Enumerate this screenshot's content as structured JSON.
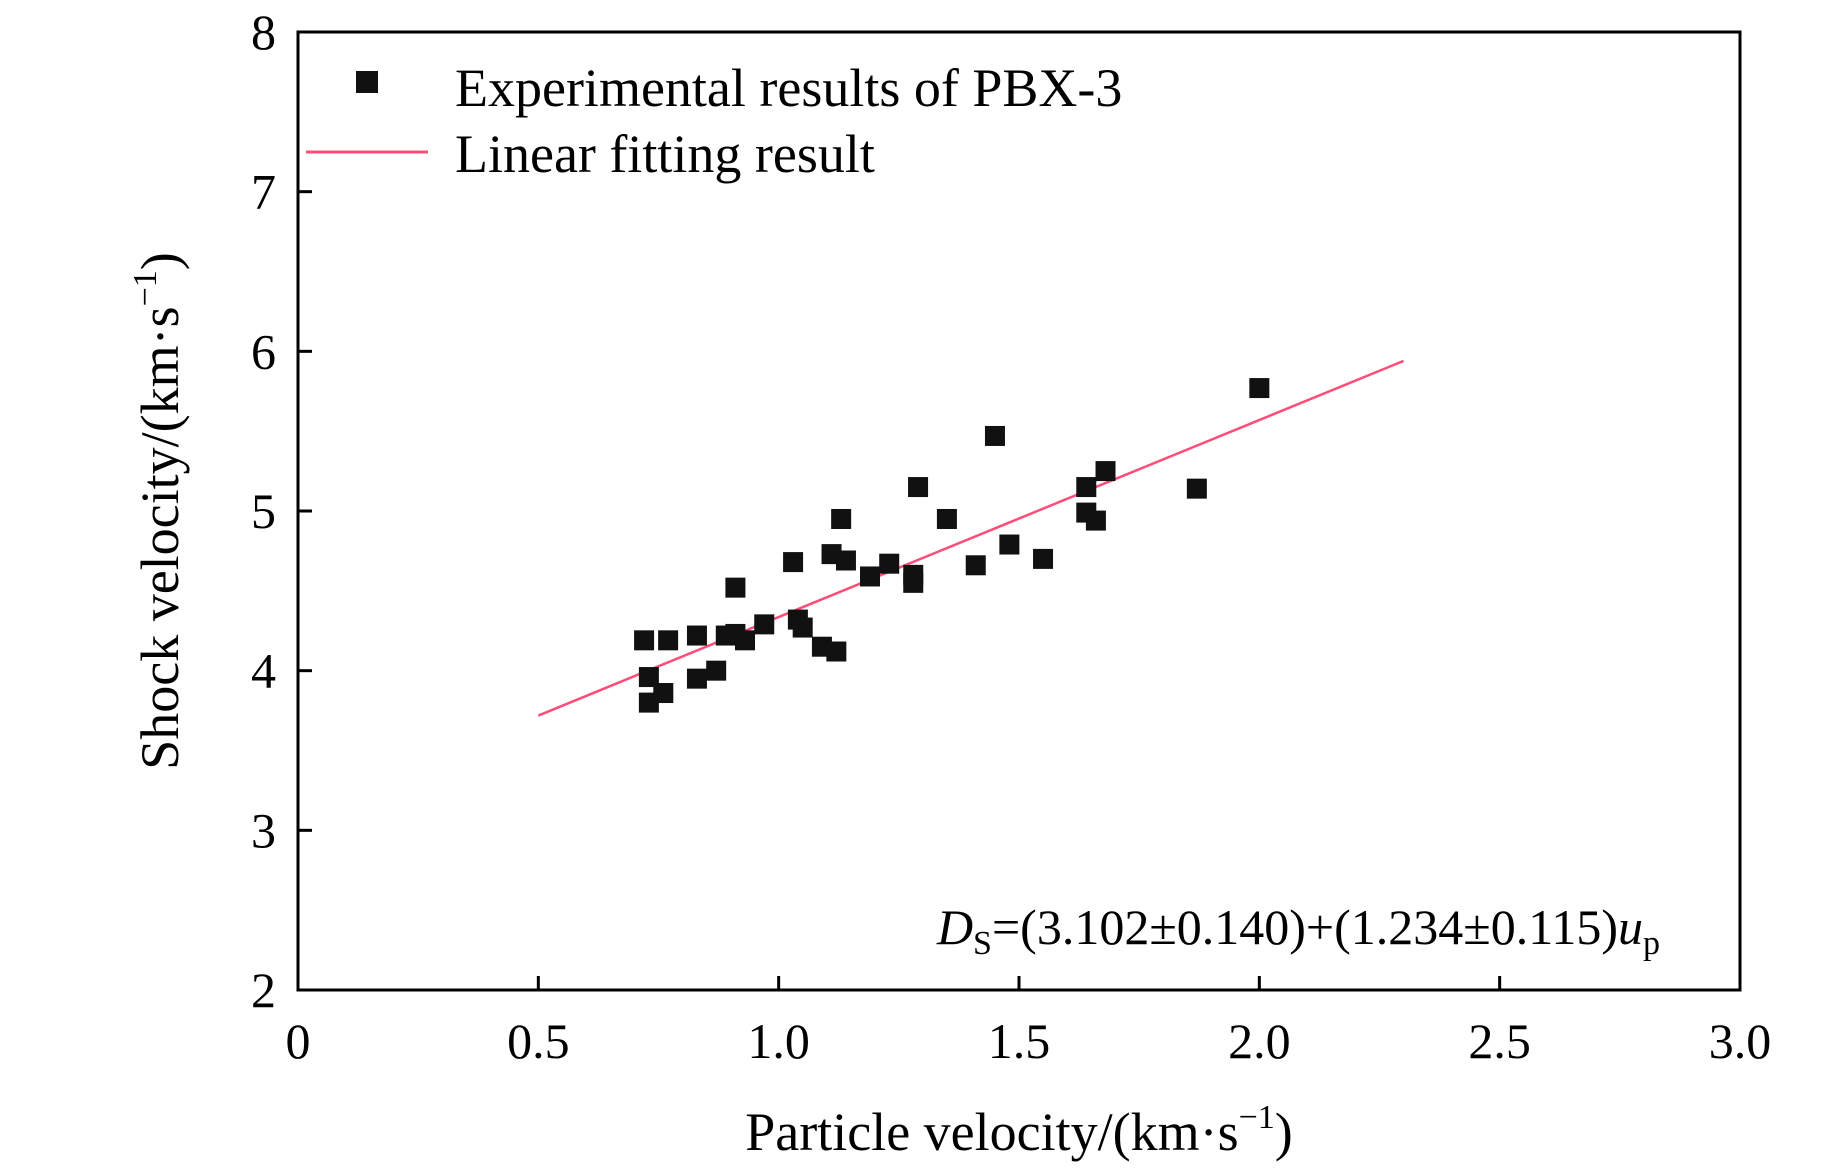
{
  "chart_data": {
    "type": "scatter",
    "title": "",
    "xlabel": "Particle velocity/(km·s",
    "xlabel_sup": "−1",
    "xlabel_close": ")",
    "ylabel": "Shock velocity/(km·s",
    "ylabel_sup": "−1",
    "ylabel_close": ")",
    "xlim": [
      0,
      3.0
    ],
    "ylim": [
      2,
      8
    ],
    "x_ticks": [
      0,
      0.5,
      1.0,
      1.5,
      2.0,
      2.5,
      3.0
    ],
    "x_tick_labels": [
      "0",
      "0.5",
      "1.0",
      "1.5",
      "2.0",
      "2.5",
      "3.0"
    ],
    "y_ticks": [
      2,
      3,
      4,
      5,
      6,
      7,
      8
    ],
    "y_tick_labels": [
      "2",
      "3",
      "4",
      "5",
      "6",
      "7",
      "8"
    ],
    "grid": false,
    "legend_position": "top-left",
    "series": [
      {
        "name": "Experimental results of PBX-3",
        "kind": "scatter",
        "marker": "square",
        "color": "#111111",
        "points": [
          [
            0.72,
            4.19
          ],
          [
            0.73,
            3.96
          ],
          [
            0.73,
            3.8
          ],
          [
            0.76,
            3.86
          ],
          [
            0.77,
            4.19
          ],
          [
            0.83,
            4.22
          ],
          [
            0.83,
            3.95
          ],
          [
            0.87,
            4.0
          ],
          [
            0.89,
            4.22
          ],
          [
            0.91,
            4.52
          ],
          [
            0.91,
            4.23
          ],
          [
            0.93,
            4.19
          ],
          [
            0.97,
            4.29
          ],
          [
            1.03,
            4.68
          ],
          [
            1.04,
            4.32
          ],
          [
            1.05,
            4.27
          ],
          [
            1.09,
            4.15
          ],
          [
            1.11,
            4.73
          ],
          [
            1.12,
            4.12
          ],
          [
            1.13,
            4.95
          ],
          [
            1.14,
            4.69
          ],
          [
            1.19,
            4.59
          ],
          [
            1.23,
            4.67
          ],
          [
            1.28,
            4.6
          ],
          [
            1.28,
            4.55
          ],
          [
            1.29,
            5.15
          ],
          [
            1.35,
            4.95
          ],
          [
            1.41,
            4.66
          ],
          [
            1.45,
            5.47
          ],
          [
            1.48,
            4.79
          ],
          [
            1.55,
            4.7
          ],
          [
            1.64,
            5.15
          ],
          [
            1.64,
            4.99
          ],
          [
            1.66,
            4.94
          ],
          [
            1.68,
            5.25
          ],
          [
            1.87,
            5.14
          ],
          [
            2.0,
            5.77
          ]
        ]
      },
      {
        "name": "Linear fitting result",
        "kind": "line",
        "color": "#ff4d7a",
        "x": [
          0.5,
          2.3
        ],
        "y": [
          3.719,
          5.94
        ]
      }
    ],
    "annotation": {
      "var": "D",
      "var_sub": "S",
      "eq": "=(3.102±0.140)+(1.234±0.115)",
      "var2": "u",
      "var2_sub": "p"
    }
  }
}
